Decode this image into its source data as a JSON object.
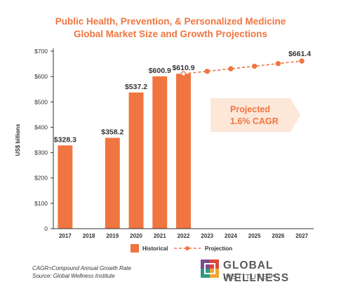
{
  "chart_data": {
    "type": "bar",
    "title": "Public Health, Prevention, & Personalized Medicine",
    "subtitle": "Global Market Size and Growth Projections",
    "ylabel": "US$ billions",
    "ylim": [
      0,
      700
    ],
    "yticks": [
      0,
      100,
      200,
      300,
      400,
      500,
      600,
      700
    ],
    "ytick_labels": [
      "0",
      "$100",
      "$200",
      "$300",
      "$400",
      "$500",
      "$600",
      "$700"
    ],
    "categories": [
      "2017",
      "2018",
      "2019",
      "2020",
      "2021",
      "2022",
      "2023",
      "2024",
      "2025",
      "2026",
      "2027"
    ],
    "series": [
      {
        "name": "Historical",
        "type": "bar",
        "color": "#f07540",
        "values": [
          328.3,
          null,
          358.2,
          537.2,
          600.9,
          610.9,
          null,
          null,
          null,
          null,
          null
        ],
        "labels": [
          "$328.3",
          "",
          "$358.2",
          "$537.2",
          "$600.9",
          "$610.9",
          "",
          "",
          "",
          "",
          ""
        ]
      },
      {
        "name": "Projection",
        "type": "line",
        "style": "dashed",
        "color": "#f07540",
        "x": [
          "2022",
          "2023",
          "2024",
          "2025",
          "2026",
          "2027"
        ],
        "values": [
          610.9,
          620.7,
          630.6,
          640.7,
          651.0,
          661.4
        ],
        "end_label": "$661.4"
      }
    ],
    "annotation": [
      "Projected",
      "1.6% CAGR"
    ],
    "grid": false,
    "legend": "bottom"
  },
  "footnotes": [
    "CAGR=Compound Annual Growth Rate",
    "Source: Global Wellness Institute"
  ],
  "logo": {
    "line1": "GLOBAL WELLNESS",
    "line2": "INSTITUTE™",
    "colors": [
      "#7b4b94",
      "#e0453a",
      "#2e9a86",
      "#f0a531"
    ]
  }
}
